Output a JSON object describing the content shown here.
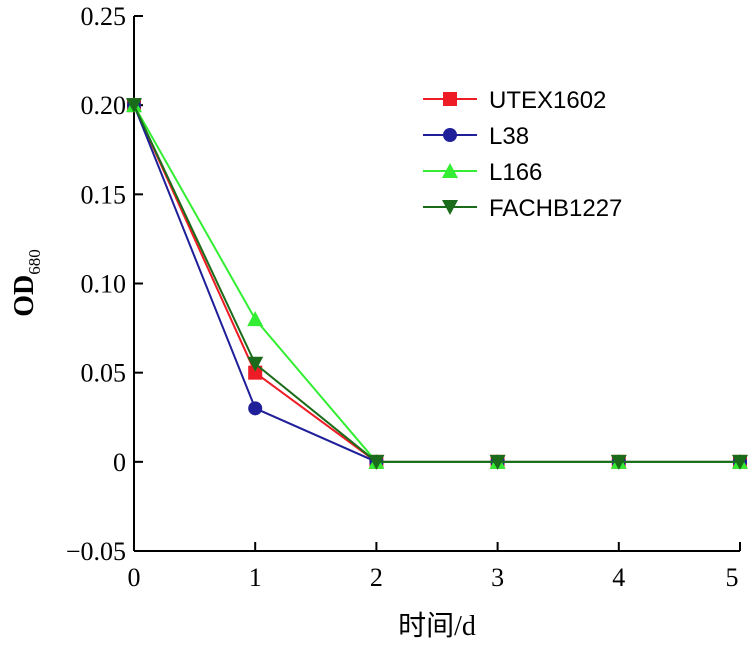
{
  "chart_data": {
    "type": "line",
    "xlabel": "时间/d",
    "ylabel_main": "OD",
    "ylabel_sub": "680",
    "x": [
      0,
      1,
      2,
      3,
      4,
      5
    ],
    "xlim": [
      0,
      5
    ],
    "ylim": [
      -0.05,
      0.25
    ],
    "x_ticks": [
      0,
      1,
      2,
      3,
      4,
      5
    ],
    "x_tick_labels": [
      "0",
      "1",
      "2",
      "3",
      "4",
      "5"
    ],
    "y_ticks": [
      -0.05,
      0,
      0.05,
      0.1,
      0.15,
      0.2,
      0.25
    ],
    "y_tick_labels": [
      "−0.05",
      "0",
      "0.05",
      "0.10",
      "0.15",
      "0.20",
      "0.25"
    ],
    "grid": false,
    "legend_position": "top-right",
    "series": [
      {
        "name": "UTEX1602",
        "color": "#ee1c24",
        "marker": "square",
        "values": [
          0.2,
          0.05,
          0,
          0,
          0,
          0
        ]
      },
      {
        "name": "L38",
        "color": "#1f1f9a",
        "marker": "circle",
        "values": [
          0.2,
          0.03,
          0,
          0,
          0,
          0
        ]
      },
      {
        "name": "L166",
        "color": "#33ee33",
        "marker": "triangle-up",
        "values": [
          0.2,
          0.08,
          0,
          0,
          0,
          0
        ]
      },
      {
        "name": "FACHB1227",
        "color": "#1a6b1a",
        "marker": "triangle-down",
        "values": [
          0.2,
          0.055,
          0,
          0,
          0,
          0
        ]
      }
    ]
  }
}
